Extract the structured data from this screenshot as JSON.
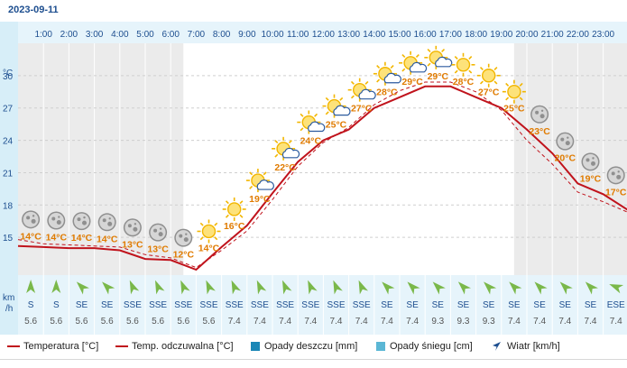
{
  "date": "2023-09-11",
  "hours": [
    "1:00",
    "2:00",
    "3:00",
    "4:00",
    "5:00",
    "6:00",
    "7:00",
    "8:00",
    "9:00",
    "10:00",
    "11:00",
    "12:00",
    "13:00",
    "14:00",
    "15:00",
    "16:00",
    "17:00",
    "18:00",
    "19:00",
    "20:00",
    "21:00",
    "22:00",
    "23:00"
  ],
  "temp_unit": "°C",
  "wind_unit_top": "km",
  "wind_unit_bottom": "/h",
  "chart_data": {
    "type": "line",
    "y_ticks": [
      15,
      18,
      21,
      24,
      27,
      30
    ],
    "ylim": [
      11.5,
      33
    ],
    "hours": [
      0,
      1,
      2,
      3,
      4,
      5,
      6,
      7,
      8,
      9,
      10,
      11,
      12,
      13,
      14,
      15,
      16,
      17,
      18,
      19,
      20,
      21,
      22,
      23,
      24
    ],
    "temperature": [
      14.2,
      14.1,
      14.0,
      14.0,
      13.8,
      13.0,
      12.9,
      12.0,
      14.1,
      16.1,
      19.1,
      22.0,
      24.0,
      25.0,
      27.0,
      28.0,
      29.0,
      29.0,
      28.0,
      27.0,
      25.0,
      22.8,
      20.0,
      19.0,
      17.5
    ],
    "feels_like": [
      14.8,
      14.4,
      14.3,
      14.2,
      14.1,
      13.4,
      13.1,
      12.2,
      13.8,
      15.6,
      18.5,
      21.6,
      23.8,
      25.2,
      27.3,
      28.6,
      29.4,
      29.4,
      28.5,
      26.8,
      24.0,
      21.8,
      19.2,
      18.3,
      17.3
    ],
    "labels": [
      "14°C",
      "14°C",
      "14°C",
      "14°C",
      "13°C",
      "13°C",
      "12°C",
      "14°C",
      "16°C",
      "19°C",
      "22°C",
      "24°C",
      "25°C",
      "27°C",
      "28°C",
      "29°C",
      "29°C",
      "28°C",
      "27°C",
      "25°C",
      "23°C",
      "20°C",
      "19°C",
      "17°C"
    ],
    "icons": [
      "moon-icon",
      "moon-icon",
      "moon-icon",
      "moon-icon",
      "moon-icon",
      "moon-icon",
      "moon-icon",
      "sun-icon",
      "sun-icon",
      "sun-cloud-icon",
      "sun-cloud-icon",
      "sun-cloud-icon",
      "sun-cloud-icon",
      "sun-cloud-icon",
      "sun-cloud-icon",
      "sun-cloud-icon",
      "sun-cloud-icon",
      "sun-icon",
      "sun-icon",
      "sun-icon",
      "moon-icon",
      "moon-icon",
      "moon-icon",
      "moon-icon"
    ],
    "wind_dir": [
      "S",
      "S",
      "SE",
      "SE",
      "SSE",
      "SSE",
      "SSE",
      "SSE",
      "SSE",
      "SSE",
      "SSE",
      "SSE",
      "SSE",
      "SSE",
      "SE",
      "SE",
      "SE",
      "SE",
      "SE",
      "SE",
      "SE",
      "SE",
      "SE",
      "ESE"
    ],
    "wind_deg": [
      180,
      180,
      135,
      135,
      157,
      157,
      157,
      157,
      157,
      157,
      157,
      157,
      157,
      157,
      135,
      135,
      135,
      135,
      135,
      135,
      135,
      135,
      135,
      112
    ],
    "wind_speed": [
      "5.6",
      "5.6",
      "5.6",
      "5.6",
      "5.6",
      "5.6",
      "5.6",
      "5.6",
      "7.4",
      "7.4",
      "7.4",
      "7.4",
      "7.4",
      "7.4",
      "7.4",
      "7.4",
      "9.3",
      "9.3",
      "9.3",
      "7.4",
      "7.4",
      "7.4",
      "7.4",
      "7.4"
    ]
  },
  "legend": {
    "temperature": "Temperatura [°C]",
    "feels_like": "Temp. odczuwalna [°C]",
    "rain": "Opady deszczu [mm]",
    "snow": "Opady śniegu [cm]",
    "wind": "Wiatr [km/h]"
  },
  "colors": {
    "temp_line": "#c0131c",
    "label_orange": "#e07b00",
    "rain": "#1b87b6",
    "snow": "#5bb7d5",
    "wind_arrow": "#7ab84a",
    "night_bg": "#ebebeb",
    "day_bg": "#ffffff",
    "text_blue": "#1d4e8f"
  }
}
